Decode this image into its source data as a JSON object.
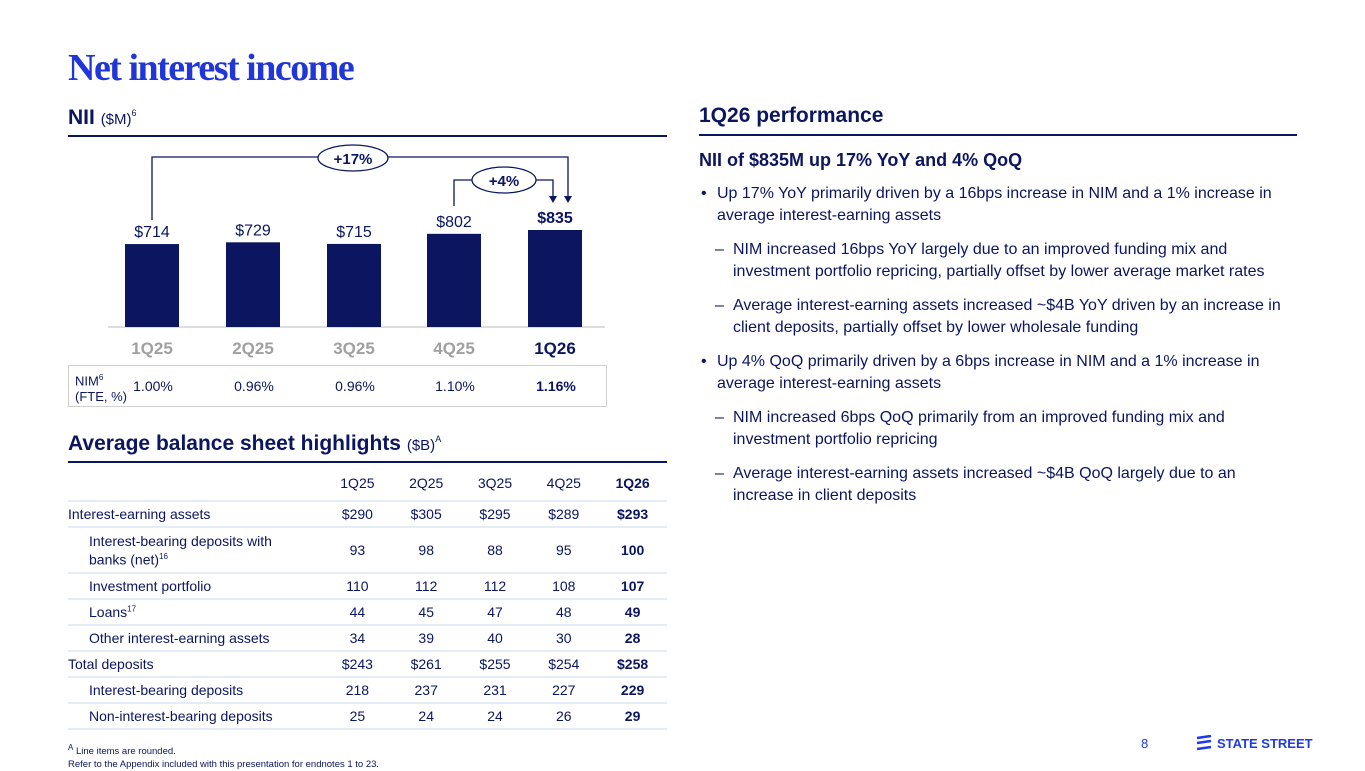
{
  "title": "Net interest income",
  "nii": {
    "heading": "NII",
    "unit": "($M)",
    "note": "6"
  },
  "chart_data": {
    "type": "bar",
    "title": "NII ($M)",
    "categories": [
      "1Q25",
      "2Q25",
      "3Q25",
      "4Q25",
      "1Q26"
    ],
    "values": [
      714,
      729,
      715,
      802,
      835
    ],
    "labels": [
      "$714",
      "$729",
      "$715",
      "$802",
      "$835"
    ],
    "ylim": [
      0,
      850
    ],
    "highlight": "1Q26",
    "annotations": [
      {
        "text": "+17%",
        "from": "1Q25",
        "to": "1Q26"
      },
      {
        "text": "+4%",
        "from": "4Q25",
        "to": "1Q26"
      }
    ],
    "nim": {
      "label": "NIM",
      "note": "6",
      "sublabel": "(FTE, %)",
      "values": [
        "1.00%",
        "0.96%",
        "0.96%",
        "1.10%",
        "1.16%"
      ]
    }
  },
  "balance": {
    "heading": "Average balance sheet highlights",
    "unit": "($B)",
    "note": "A",
    "columns": [
      "1Q25",
      "2Q25",
      "3Q25",
      "4Q25",
      "1Q26"
    ],
    "rows": [
      {
        "label": "Interest-earning assets",
        "note": "",
        "indent": false,
        "values": [
          "$290",
          "$305",
          "$295",
          "$289",
          "$293"
        ]
      },
      {
        "label": "Interest-bearing deposits with banks (net)",
        "note": "16",
        "indent": true,
        "values": [
          "93",
          "98",
          "88",
          "95",
          "100"
        ]
      },
      {
        "label": "Investment portfolio",
        "note": "",
        "indent": true,
        "values": [
          "110",
          "112",
          "112",
          "108",
          "107"
        ]
      },
      {
        "label": "Loans",
        "note": "17",
        "indent": true,
        "values": [
          "44",
          "45",
          "47",
          "48",
          "49"
        ]
      },
      {
        "label": "Other interest-earning assets",
        "note": "",
        "indent": true,
        "values": [
          "34",
          "39",
          "40",
          "30",
          "28"
        ]
      },
      {
        "label": "Total deposits",
        "note": "",
        "indent": false,
        "values": [
          "$243",
          "$261",
          "$255",
          "$254",
          "$258"
        ]
      },
      {
        "label": "Interest-bearing deposits",
        "note": "",
        "indent": true,
        "values": [
          "218",
          "237",
          "231",
          "227",
          "229"
        ]
      },
      {
        "label": "Non-interest-bearing deposits",
        "note": "",
        "indent": true,
        "values": [
          "25",
          "24",
          "24",
          "26",
          "29"
        ]
      }
    ]
  },
  "performance": {
    "heading": "1Q26 performance",
    "subheading": "NII of $835M up 17% YoY and 4% QoQ",
    "bullets": [
      {
        "level": 1,
        "text": "Up 17% YoY primarily driven by a 16bps increase in NIM and a 1% increase in average interest-earning assets"
      },
      {
        "level": 2,
        "text": "NIM increased 16bps YoY largely due to an improved funding mix and investment portfolio repricing, partially offset by lower average market rates"
      },
      {
        "level": 2,
        "text": "Average interest-earning assets increased ~$4B YoY driven by an increase in client deposits, partially offset by lower wholesale funding"
      },
      {
        "level": 1,
        "text": "Up 4% QoQ primarily driven by a 6bps increase in NIM and a 1% increase in average interest-earning assets"
      },
      {
        "level": 2,
        "text": "NIM increased 6bps QoQ primarily from an improved funding mix and investment portfolio repricing"
      },
      {
        "level": 2,
        "text": "Average interest-earning assets increased ~$4B QoQ largely due to an increase in client deposits"
      }
    ]
  },
  "footer": {
    "note": "Line items are rounded.",
    "note_mark": "A",
    "appendix": "Refer to the Appendix included with this presentation for endnotes 1 to 23.",
    "page": "8",
    "logo": "STATE STREET"
  },
  "colors": {
    "navy": "#0b1560",
    "title_blue": "#2036d8",
    "logo_blue": "#2139e8"
  }
}
